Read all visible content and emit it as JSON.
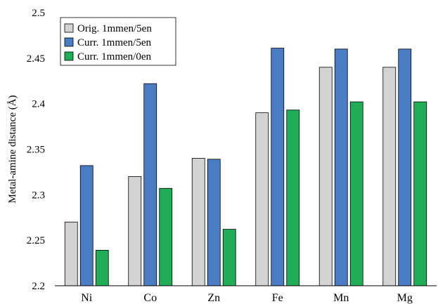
{
  "chart_data": {
    "type": "bar",
    "title": "",
    "xlabel": "",
    "ylabel": "Metal-amine distance (Å)",
    "ylim": [
      2.2,
      2.5
    ],
    "yticks": [
      "2.2",
      "2.25",
      "2.3",
      "2.35",
      "2.4",
      "2.45",
      "2.5"
    ],
    "categories": [
      "Ni",
      "Co",
      "Zn",
      "Fe",
      "Mn",
      "Mg"
    ],
    "series": [
      {
        "name": "Orig. 1mmen/5en",
        "color": "#d3d3d3",
        "values": [
          2.27,
          2.32,
          2.34,
          2.39,
          2.44,
          2.44
        ]
      },
      {
        "name": "Curr. 1mmen/5en",
        "color": "#4a7cc4",
        "values": [
          2.332,
          2.422,
          2.339,
          2.461,
          2.46,
          2.46
        ]
      },
      {
        "name": "Curr. 1mmen/0en",
        "color": "#1fae57",
        "values": [
          2.239,
          2.307,
          2.262,
          2.393,
          2.402,
          2.402
        ]
      }
    ],
    "legend_position": "top-left",
    "grid": false
  }
}
